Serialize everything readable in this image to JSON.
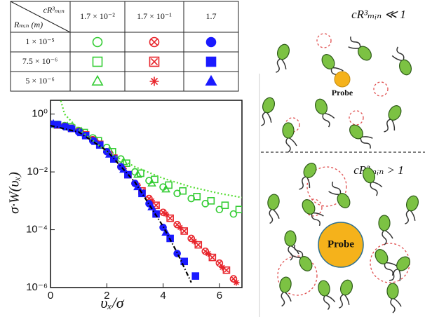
{
  "chart_data": {
    "type": "scatter",
    "xlabel": "υₓ/σ",
    "ylabel": "σ·W(υₓ)",
    "xlim": [
      0,
      6.8
    ],
    "ylim": [
      1e-06,
      3
    ],
    "log_y": true,
    "xticks": [
      0,
      2,
      4,
      6
    ],
    "yticks": [
      {
        "value": 1,
        "label": "10⁰"
      },
      {
        "value": 0.01,
        "label": "10⁻²"
      },
      {
        "value": 0.0001,
        "label": "10⁻⁴"
      },
      {
        "value": 1e-06,
        "label": "10⁻⁶"
      }
    ],
    "legend_table": {
      "corner_top": "cR³ₘᵢₙ",
      "corner_bottom": "Rₘᵢₙ (m)",
      "columns": [
        "1.7 × 10⁻²",
        "1.7 × 10⁻¹",
        "1.7"
      ],
      "rows": [
        "1 × 10⁻⁵",
        "7.5 × 10⁻⁶",
        "5 × 10⁻⁶"
      ]
    },
    "series": [
      {
        "color": "#33cc33",
        "marker": "circle",
        "filled": false,
        "x": [
          0,
          0.5,
          1,
          1.5,
          2,
          2.5,
          3,
          3.5,
          4,
          4.5,
          5,
          5.5,
          6,
          6.5
        ],
        "values": [
          0.45,
          0.4,
          0.27,
          0.15,
          0.07,
          0.028,
          0.01,
          0.005,
          0.003,
          0.0018,
          0.0012,
          0.0008,
          0.0005,
          0.00035
        ]
      },
      {
        "color": "#33cc33",
        "marker": "square",
        "filled": false,
        "x": [
          0.2,
          0.7,
          1.2,
          1.7,
          2.2,
          2.7,
          3.2,
          3.7,
          4.2,
          4.7,
          5.2,
          5.7,
          6.2,
          6.7
        ],
        "values": [
          0.44,
          0.36,
          0.23,
          0.12,
          0.05,
          0.02,
          0.009,
          0.0055,
          0.0035,
          0.0022,
          0.0014,
          0.001,
          0.0007,
          0.0005
        ]
      },
      {
        "color": "#33cc33",
        "marker": "triangle",
        "filled": false,
        "x": [
          0.1,
          0.6,
          1.1,
          1.6,
          2.1,
          2.6,
          3.1,
          3.6,
          4.1
        ],
        "values": [
          0.45,
          0.38,
          0.25,
          0.13,
          0.055,
          0.022,
          0.008,
          0.004,
          0.0025
        ]
      },
      {
        "color": "#e8242b",
        "marker": "circle-x",
        "filled": false,
        "x": [
          0,
          0.5,
          1,
          1.5,
          2,
          2.5,
          3,
          3.5,
          4,
          4.5,
          5,
          5.5,
          6,
          6.5
        ],
        "values": [
          0.45,
          0.38,
          0.25,
          0.13,
          0.05,
          0.015,
          0.004,
          0.0012,
          0.0004,
          0.00015,
          5e-05,
          1.8e-05,
          7e-06,
          2e-06
        ]
      },
      {
        "color": "#e8242b",
        "marker": "square-x",
        "filled": false,
        "x": [
          0.25,
          0.75,
          1.25,
          1.75,
          2.25,
          2.75,
          3.25,
          3.75,
          4.25,
          4.75,
          5.25,
          5.75,
          6.25
        ],
        "values": [
          0.42,
          0.32,
          0.19,
          0.09,
          0.03,
          0.008,
          0.0022,
          0.0007,
          0.00025,
          9e-05,
          3e-05,
          1.1e-05,
          4e-06
        ]
      },
      {
        "color": "#e8242b",
        "marker": "asterisk",
        "filled": false,
        "x": [
          0.1,
          0.6,
          1.1,
          1.6,
          2.1,
          2.6,
          3.1,
          3.6,
          4.1,
          4.6,
          5.1,
          5.6,
          6.1,
          6.6
        ],
        "values": [
          0.46,
          0.36,
          0.23,
          0.12,
          0.045,
          0.013,
          0.0035,
          0.001,
          0.00035,
          0.00012,
          4e-05,
          1.5e-05,
          5e-06,
          1.5e-06
        ]
      },
      {
        "color": "#1a1aff",
        "marker": "circle",
        "filled": true,
        "x": [
          0,
          0.5,
          1,
          1.5,
          2,
          2.5,
          3,
          3.5,
          4,
          4.5
        ],
        "values": [
          0.45,
          0.37,
          0.24,
          0.12,
          0.05,
          0.015,
          0.004,
          0.0008,
          0.00012,
          1.5e-05
        ]
      },
      {
        "color": "#1a1aff",
        "marker": "square",
        "filled": true,
        "x": [
          0.25,
          0.75,
          1.25,
          1.75,
          2.25,
          2.75,
          3.25,
          3.75,
          4.25,
          4.75,
          5.15
        ],
        "values": [
          0.43,
          0.32,
          0.18,
          0.085,
          0.028,
          0.008,
          0.0018,
          0.00035,
          5e-05,
          8e-06,
          2.5e-06
        ]
      },
      {
        "color": "#1a1aff",
        "marker": "triangle",
        "filled": true,
        "x": [
          0.1,
          0.6,
          1.1,
          1.6,
          2.1,
          2.6,
          3.1,
          3.6,
          4.1
        ],
        "values": [
          0.46,
          0.35,
          0.22,
          0.11,
          0.04,
          0.012,
          0.003,
          0.0006,
          8e-05
        ]
      },
      {
        "color": "#55dd33",
        "line": "dotted",
        "x": [
          0.3,
          0.5,
          1,
          2,
          3,
          4,
          5,
          6,
          6.8
        ],
        "values": [
          5,
          1,
          0.3,
          0.05,
          0.015,
          0.006,
          0.003,
          0.0018,
          0.0013
        ]
      },
      {
        "color": "#000000",
        "line": "dashdot",
        "x": [
          0,
          1,
          2,
          3,
          4,
          4.5,
          5
        ],
        "values": [
          0.4,
          0.24,
          0.054,
          0.0044,
          0.00013,
          1.6e-05,
          1.5e-06
        ]
      }
    ]
  },
  "diagram": {
    "panels": [
      {
        "label": "cR³ₘᵢₙ ≪ 1",
        "probe": "Probe"
      },
      {
        "label": "cR³ₘᵢₙ > 1",
        "probe": "Probe"
      }
    ]
  }
}
